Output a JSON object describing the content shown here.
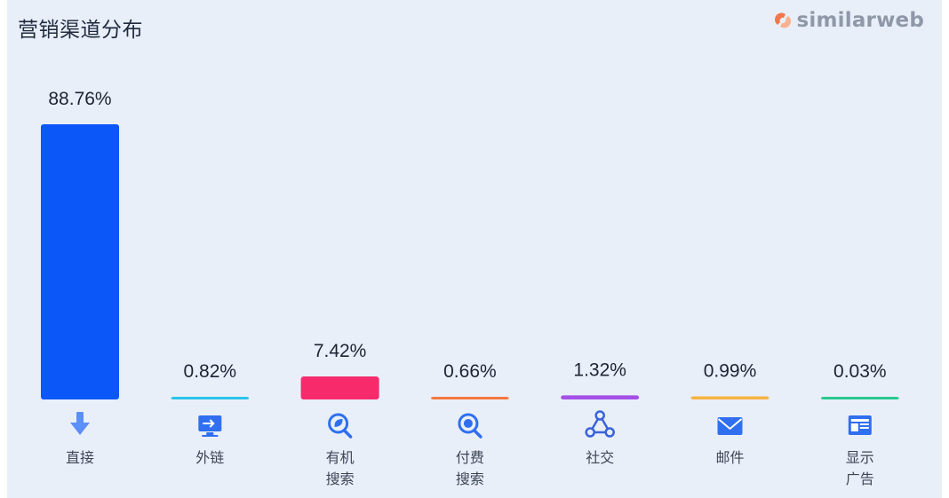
{
  "header": {
    "title": "营销渠道分布",
    "brand": "similarweb",
    "brand_color": "#f2774b"
  },
  "chart_data": {
    "type": "bar",
    "title": "营销渠道分布",
    "xlabel": "",
    "ylabel": "",
    "ylim": [
      0,
      88.76
    ],
    "grid": false,
    "legend": "none",
    "categories": [
      [
        "直接"
      ],
      [
        "外链"
      ],
      [
        "有机",
        "搜索"
      ],
      [
        "付费",
        "搜索"
      ],
      [
        "社交"
      ],
      [
        "邮件"
      ],
      [
        "显示",
        "广告"
      ]
    ],
    "values": [
      88.76,
      0.82,
      7.42,
      0.66,
      1.32,
      0.99,
      0.03
    ],
    "value_labels": [
      "88.76%",
      "0.82%",
      "7.42%",
      "0.66%",
      "1.32%",
      "0.99%",
      "0.03%"
    ],
    "colors": [
      "#0b57f7",
      "#2cc3e8",
      "#f72a6b",
      "#f5773e",
      "#a250e6",
      "#f5b342",
      "#27c98f"
    ],
    "icons": [
      "arrow-down-icon",
      "referral-screen-icon",
      "organic-search-icon",
      "paid-search-icon",
      "social-share-icon",
      "mail-icon",
      "display-ad-icon"
    ]
  }
}
